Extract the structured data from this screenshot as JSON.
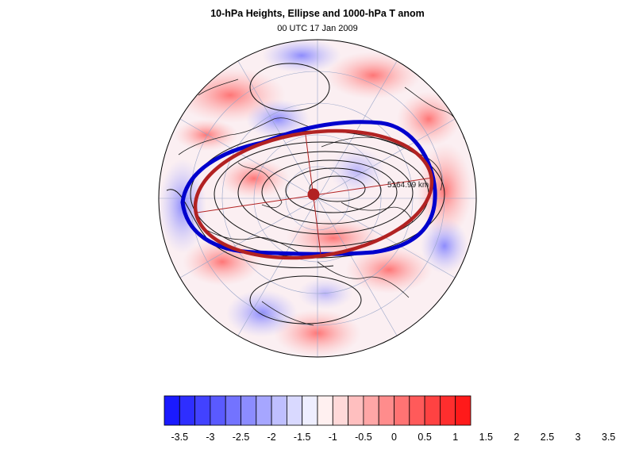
{
  "header": {
    "title": "10-hPa Heights, Ellipse and 1000-hPa T anom",
    "subtitle": "00 UTC 17 Jan 2009"
  },
  "map": {
    "projection": "polar stereographic (north pole)",
    "ellipse_label": "5164.99 km",
    "ellipse_color": "#B22222",
    "contour_highlight_color": "#0000CD",
    "contour_color": "#000000"
  },
  "colorbar": {
    "levels": [
      "-3.5",
      "-3",
      "-2.5",
      "-2",
      "-1.5",
      "-1",
      "-0.5",
      "0",
      "0.5",
      "1",
      "1.5",
      "2",
      "2.5",
      "3",
      "3.5"
    ],
    "colors": [
      "#1a1aff",
      "#2e2eff",
      "#4242ff",
      "#5a5aff",
      "#7373ff",
      "#8c8cff",
      "#a6a6ff",
      "#bfbfff",
      "#d9d9ff",
      "#eeeeff",
      "#fff0f0",
      "#ffd9d9",
      "#ffbfbf",
      "#ffa6a6",
      "#ff8c8c",
      "#ff7373",
      "#ff5a5a",
      "#ff4242",
      "#ff2e2e",
      "#ff1a1a"
    ]
  }
}
